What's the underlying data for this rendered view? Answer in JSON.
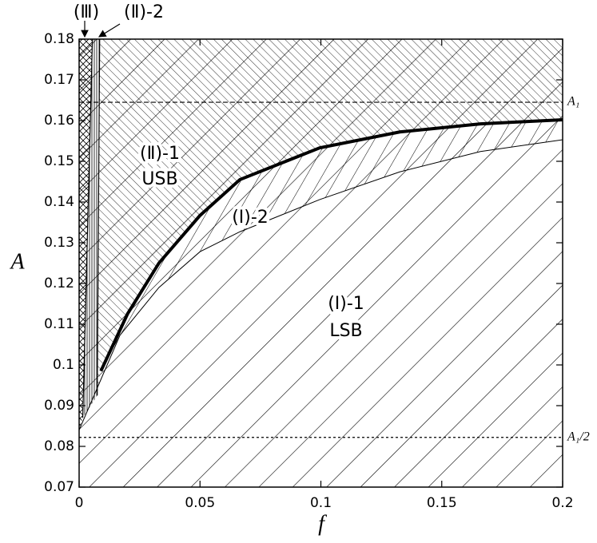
{
  "chart_data": {
    "type": "phase-diagram",
    "xlabel": "f",
    "ylabel": "A",
    "xlim": [
      0,
      0.2
    ],
    "ylim": [
      0.07,
      0.18
    ],
    "xticks": [
      0,
      0.05,
      0.1,
      0.15,
      0.2
    ],
    "yticks": [
      0.07,
      0.08,
      0.09,
      0.1,
      0.11,
      0.12,
      0.13,
      0.14,
      0.15,
      0.16,
      0.17,
      0.18
    ],
    "series": [
      {
        "color": "#000000",
        "line_width": 4,
        "x": [
          0.009,
          0.02,
          0.033,
          0.05,
          0.0665,
          0.0995,
          0.1326,
          0.166,
          0.2
        ],
        "values": [
          0.0985,
          0.1125,
          0.125,
          0.1367,
          0.1455,
          0.1533,
          0.1572,
          0.1592,
          0.1602
        ]
      },
      {
        "color": "#000000",
        "line_width": 1,
        "x": [
          0,
          0.0169,
          0.033,
          0.05,
          0.0665,
          0.0995,
          0.1326,
          0.166,
          0.2
        ],
        "values": [
          0.084,
          0.1073,
          0.119,
          0.1278,
          0.1327,
          0.1406,
          0.1474,
          0.1524,
          0.1553
        ]
      },
      {
        "color": "#000000",
        "line_width": 1.2,
        "x": [
          0.0085,
          0.0075
        ],
        "values": [
          0.18,
          0.0925
        ]
      },
      {
        "color": "#000000",
        "line_width": 1.2,
        "x": [
          0.0055,
          0.0015
        ],
        "values": [
          0.18,
          0.087
        ]
      }
    ],
    "hlines": [
      {
        "value": 0.1645,
        "label": "A₁",
        "dash": "6,3"
      },
      {
        "value": 0.0822,
        "label": "A₁/2",
        "dash": "3,3"
      }
    ],
    "annotations": [
      "(Ⅲ)",
      "(Ⅱ)-2",
      "(Ⅱ)-1",
      "USB",
      "(Ⅰ)-2",
      "(Ⅰ)-1",
      "LSB"
    ]
  }
}
